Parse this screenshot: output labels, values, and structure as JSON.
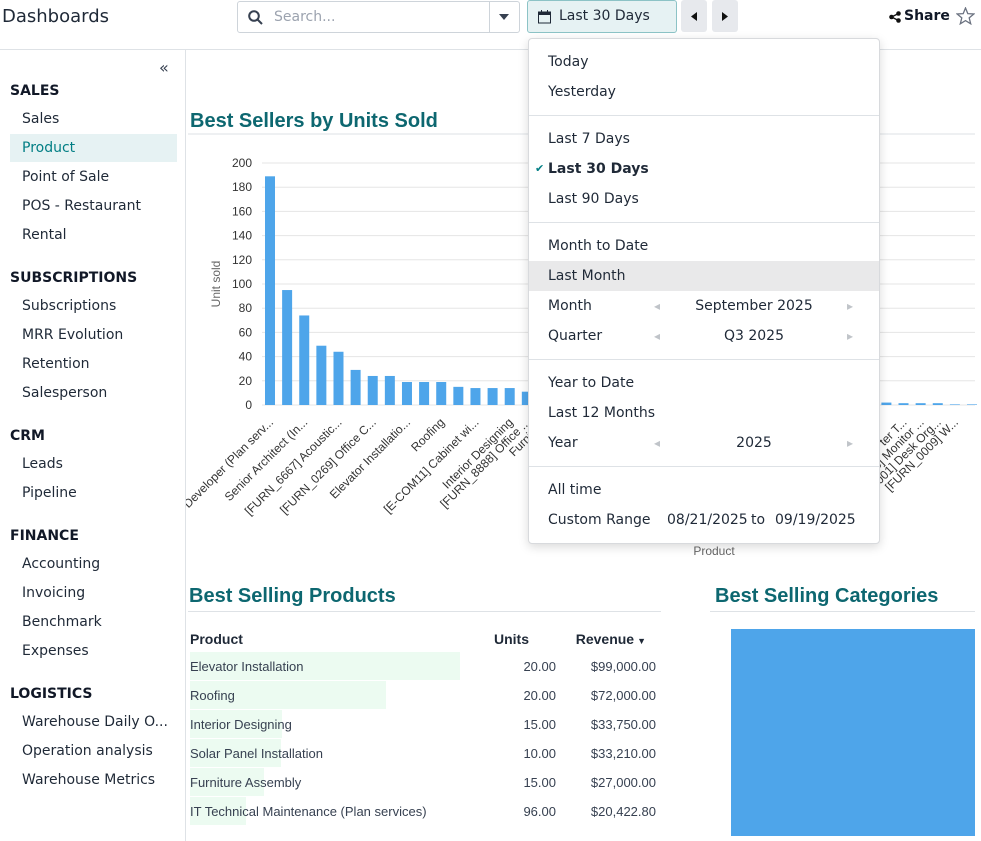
{
  "header": {
    "title": "Dashboards",
    "search_placeholder": "Search...",
    "date_filter": "Last 30 Days",
    "share": "Share"
  },
  "sidebar": [
    {
      "title": "SALES",
      "items": [
        {
          "label": "Sales"
        },
        {
          "label": "Product",
          "active": true
        },
        {
          "label": "Point of Sale"
        },
        {
          "label": "POS - Restaurant"
        },
        {
          "label": "Rental"
        }
      ]
    },
    {
      "title": "SUBSCRIPTIONS",
      "items": [
        {
          "label": "Subscriptions"
        },
        {
          "label": "MRR Evolution"
        },
        {
          "label": "Retention"
        },
        {
          "label": "Salesperson"
        }
      ]
    },
    {
      "title": "CRM",
      "items": [
        {
          "label": "Leads"
        },
        {
          "label": "Pipeline"
        }
      ]
    },
    {
      "title": "FINANCE",
      "items": [
        {
          "label": "Accounting"
        },
        {
          "label": "Invoicing"
        },
        {
          "label": "Benchmark"
        },
        {
          "label": "Expenses"
        }
      ]
    },
    {
      "title": "LOGISTICS",
      "items": [
        {
          "label": "Warehouse Daily O..."
        },
        {
          "label": "Operation analysis"
        },
        {
          "label": "Warehouse Metrics"
        }
      ]
    }
  ],
  "chart_data": {
    "type": "bar",
    "title": "Best Sellers by Units Sold",
    "y_label": "Unit sold",
    "x_label": "Product",
    "color": "#4ea5ea",
    "grid": true,
    "ylim": [
      0,
      200
    ],
    "yticks": [
      0,
      20,
      40,
      60,
      80,
      100,
      120,
      140,
      160,
      180,
      200
    ],
    "categories": [
      "Developer (Plan serv...",
      null,
      "Senior Architect (In...",
      null,
      "[FURN_6667] Acoustic...",
      null,
      "[FURN_0269] Office C...",
      null,
      "Elevator Installatio...",
      null,
      "Roofing",
      null,
      "[E-COM11] Cabinet wi...",
      null,
      "Interior Designing",
      "[FURN_8888] Office ...",
      "Furniture",
      null,
      null,
      null,
      null,
      null,
      null,
      null,
      null,
      null,
      null,
      null,
      null,
      null,
      null,
      null,
      null,
      null,
      null,
      null,
      null,
      "ter T...",
      "_0006] Monitor ...",
      "[FURN_0001] Desk Org...",
      "[FURN_0009] W...",
      null
    ],
    "values": [
      189,
      95,
      74,
      49,
      44,
      29,
      24,
      24,
      19,
      19,
      19,
      15,
      14,
      14,
      14,
      11,
      null,
      null,
      null,
      null,
      null,
      null,
      null,
      null,
      null,
      null,
      null,
      null,
      null,
      null,
      null,
      null,
      null,
      null,
      null,
      null,
      2,
      1.5,
      1.5,
      1.5,
      0.5,
      0.5
    ]
  },
  "products_table": {
    "title": "Best Selling Products",
    "columns": [
      "Product",
      "Units",
      "Revenue"
    ],
    "rows": [
      {
        "product": "Elevator Installation",
        "units": "20.00",
        "revenue": 99000,
        "revenue_label": "$99,000.00"
      },
      {
        "product": "Roofing",
        "units": "20.00",
        "revenue": 72000,
        "revenue_label": "$72,000.00"
      },
      {
        "product": "Interior Designing",
        "units": "15.00",
        "revenue": 33750,
        "revenue_label": "$33,750.00"
      },
      {
        "product": "Solar Panel Installation",
        "units": "10.00",
        "revenue": 33210,
        "revenue_label": "$33,210.00"
      },
      {
        "product": "Furniture Assembly",
        "units": "15.00",
        "revenue": 27000,
        "revenue_label": "$27,000.00"
      },
      {
        "product": "IT Technical Maintenance (Plan services)",
        "units": "96.00",
        "revenue": 20422.8,
        "revenue_label": "$20,422.80"
      }
    ]
  },
  "categories_panel": {
    "title": "Best Selling Categories"
  },
  "date_menu": [
    [
      {
        "label": "Today"
      },
      {
        "label": "Yesterday"
      }
    ],
    [
      {
        "label": "Last 7 Days"
      },
      {
        "label": "Last 30 Days",
        "checked": true
      },
      {
        "label": "Last 90 Days"
      }
    ],
    [
      {
        "label": "Month to Date"
      },
      {
        "label": "Last Month",
        "highlighted": true
      },
      {
        "label": "Month",
        "value": "September 2025"
      },
      {
        "label": "Quarter",
        "value": "Q3 2025"
      }
    ],
    [
      {
        "label": "Year to Date"
      },
      {
        "label": "Last 12 Months"
      },
      {
        "label": "Year",
        "value": "2025"
      }
    ],
    [
      {
        "label": "All time"
      },
      {
        "label": "Custom Range",
        "from": "08/21/2025",
        "between": "to",
        "to": "09/19/2025"
      }
    ]
  ]
}
